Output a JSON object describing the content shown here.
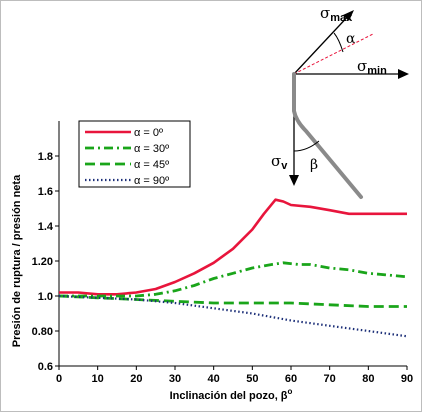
{
  "chart_data": {
    "type": "line",
    "xlabel": "Inclinación del pozo, β",
    "xlabel_sup": "o",
    "ylabel": "Presión de ruptura / presión neta",
    "xlim": [
      0,
      90
    ],
    "ylim": [
      0.6,
      2.0
    ],
    "xticks": [
      0,
      10,
      20,
      30,
      40,
      50,
      60,
      70,
      80,
      90
    ],
    "yticks": [
      0.6,
      0.8,
      1.0,
      1.2,
      1.4,
      1.6,
      1.8
    ],
    "ytick_labels": [
      "0.6",
      "0.80",
      "1.0",
      "1.20",
      "1.4",
      "1.6",
      "1.8"
    ],
    "legend_position": "top-left",
    "series": [
      {
        "name": "α = 0º",
        "color": "#e8153c",
        "dash": "solid",
        "x": [
          0,
          5,
          10,
          15,
          20,
          25,
          30,
          35,
          40,
          45,
          50,
          53,
          56,
          58,
          60,
          65,
          70,
          75,
          80,
          85,
          90
        ],
        "y": [
          1.02,
          1.02,
          1.01,
          1.01,
          1.02,
          1.04,
          1.08,
          1.13,
          1.19,
          1.27,
          1.38,
          1.47,
          1.55,
          1.54,
          1.52,
          1.51,
          1.49,
          1.47,
          1.47,
          1.47,
          1.47
        ]
      },
      {
        "name": "α = 30º",
        "color": "#1aa51a",
        "dash": "dashdot",
        "x": [
          0,
          5,
          10,
          15,
          20,
          25,
          30,
          35,
          40,
          45,
          50,
          55,
          58,
          62,
          65,
          70,
          75,
          80,
          85,
          90
        ],
        "y": [
          1.0,
          1.0,
          1.0,
          1.0,
          1.0,
          1.01,
          1.03,
          1.06,
          1.1,
          1.13,
          1.16,
          1.18,
          1.19,
          1.18,
          1.18,
          1.16,
          1.15,
          1.13,
          1.12,
          1.11
        ]
      },
      {
        "name": "α = 45º",
        "color": "#1aa51a",
        "dash": "dashed",
        "x": [
          0,
          10,
          20,
          30,
          40,
          50,
          60,
          70,
          80,
          90
        ],
        "y": [
          1.0,
          0.99,
          0.98,
          0.97,
          0.96,
          0.96,
          0.96,
          0.95,
          0.94,
          0.94
        ]
      },
      {
        "name": "α = 90º",
        "color": "#1c2f78",
        "dash": "dotted",
        "x": [
          0,
          10,
          20,
          30,
          40,
          50,
          60,
          70,
          80,
          90
        ],
        "y": [
          1.0,
          0.99,
          0.98,
          0.96,
          0.93,
          0.9,
          0.86,
          0.83,
          0.8,
          0.77
        ]
      }
    ]
  },
  "inset": {
    "sigma_max": "σ",
    "sigma_max_sub": "max",
    "sigma_min": "σ",
    "sigma_min_sub": "min",
    "sigma_v": "σ",
    "sigma_v_sub": "v",
    "alpha": "α",
    "beta": "β"
  }
}
